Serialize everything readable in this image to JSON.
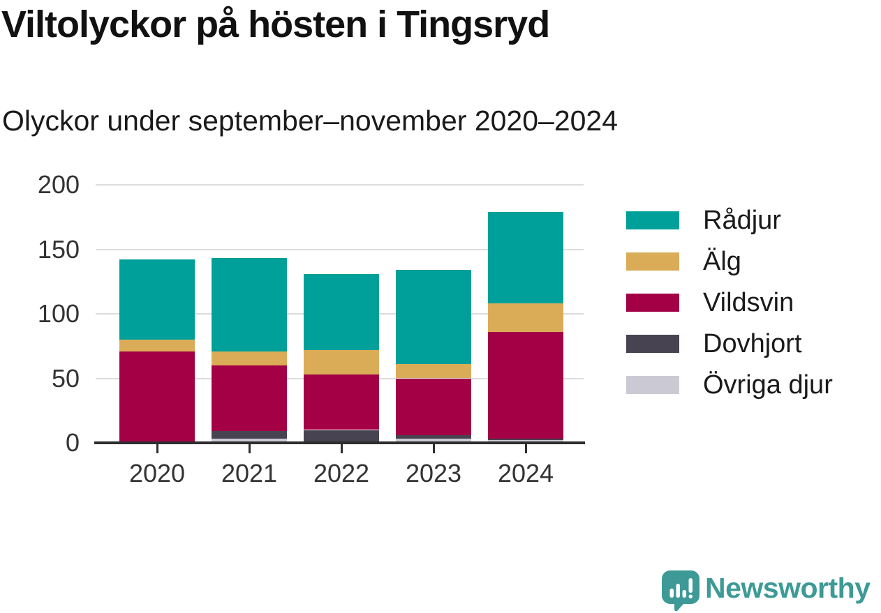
{
  "title": "Viltolyckor på hösten i Tingsryd",
  "subtitle": "Olyckor under september–november 2020–2024",
  "chart_data": {
    "type": "bar",
    "stacked": true,
    "title": "Viltolyckor på hösten i Tingsryd",
    "subtitle": "Olyckor under september–november 2020–2024",
    "categories": [
      "2020",
      "2021",
      "2022",
      "2023",
      "2024"
    ],
    "series": [
      {
        "name": "Rådjur",
        "color": "#00A09A",
        "values": [
          62,
          72,
          59,
          73,
          71
        ]
      },
      {
        "name": "Älg",
        "color": "#DBAC58",
        "values": [
          9,
          11,
          19,
          11,
          22
        ]
      },
      {
        "name": "Vildsvin",
        "color": "#A30046",
        "values": [
          71,
          51,
          43,
          44,
          83
        ]
      },
      {
        "name": "Dovhjort",
        "color": "#474350",
        "values": [
          0,
          6,
          10,
          3,
          1
        ]
      },
      {
        "name": "Övriga djur",
        "color": "#CBCAD4",
        "values": [
          0,
          3,
          0,
          3,
          2
        ]
      }
    ],
    "totals": [
      142,
      143,
      131,
      134,
      179
    ],
    "stack_order_bottom_to_top": [
      "Övriga djur",
      "Dovhjort",
      "Vildsvin",
      "Älg",
      "Rådjur"
    ],
    "xlabel": "",
    "ylabel": "",
    "ylim": [
      0,
      200
    ],
    "yticks": [
      0,
      50,
      100,
      150,
      200
    ],
    "grid": "horizontal",
    "legend_position": "right",
    "axis_color": "#2E2E2E",
    "gridline_color": "#DCDCDC"
  },
  "logo": {
    "text": "Newsworthy",
    "color": "#3D9A96",
    "icon": "bar-chart-speech-bubble-icon"
  }
}
